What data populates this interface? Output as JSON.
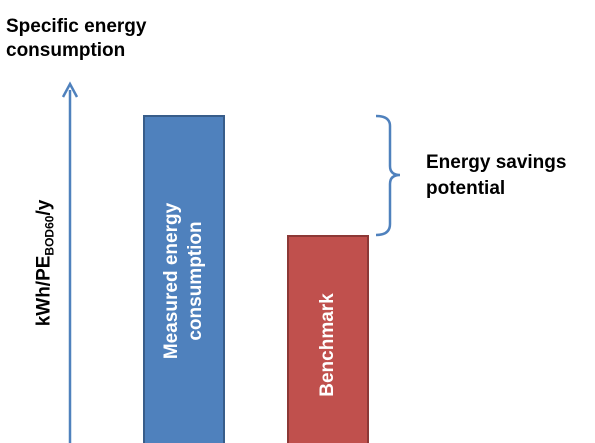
{
  "diagram": {
    "title_line1": "Specific energy",
    "title_line2": "consumption",
    "y_axis_label_main": "kWh/PE",
    "y_axis_label_sub": "BOD60",
    "y_axis_label_tail": "/y",
    "bars": {
      "measured": {
        "label_line1": "Measured energy",
        "label_line2": "consumption",
        "color": "#4f81bd"
      },
      "benchmark": {
        "label": "Benchmark",
        "color": "#c0504d"
      }
    },
    "savings_label_line1": "Energy savings",
    "savings_label_line2": "potential",
    "axis_color": "#4f81bd",
    "brace_color": "#4f81bd"
  }
}
